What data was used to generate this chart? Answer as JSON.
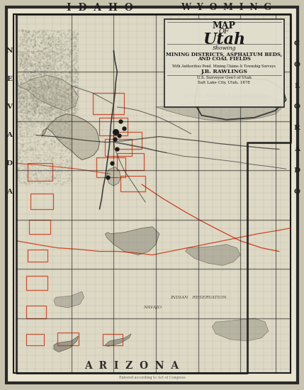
{
  "title_line1": "MAP",
  "title_line2": "OF",
  "title_line3": "Utah",
  "subtitle": "Showing",
  "subtitle2": "MINING DISTRICTS, ASPHALTUM BEDS,",
  "subtitle3": "AND COAL FIELDS",
  "author": "J.B. RAWLINGS",
  "label_idaho": "I  D  A  H  O",
  "label_arizona": "A  R  I  Z  O  N  A",
  "label_wyoming": "W  Y  O  M  I  N  G",
  "nevada_letters": [
    "N",
    "E",
    "V",
    "A",
    "D",
    "A"
  ],
  "colorado_letters": [
    "C",
    "O",
    "L",
    "O",
    "R",
    "A",
    "D",
    "O"
  ],
  "bg_color": "#e8e4d0",
  "map_bg": "#ddd9c5",
  "border_color": "#1a1a1a",
  "grid_color": "#888888",
  "outer_border": "#2a2a2a",
  "fig_bg": "#c8c4b0"
}
